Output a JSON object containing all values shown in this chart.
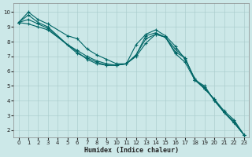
{
  "xlabel": "Humidex (Indice chaleur)",
  "ylabel": "",
  "bg_color": "#cce8e8",
  "grid_color": "#aacccc",
  "line_color": "#006666",
  "xlim": [
    -0.5,
    23.5
  ],
  "ylim": [
    1.5,
    10.6
  ],
  "xticks": [
    0,
    1,
    2,
    3,
    4,
    5,
    6,
    7,
    8,
    9,
    10,
    11,
    12,
    13,
    14,
    15,
    16,
    17,
    18,
    19,
    20,
    21,
    22,
    23
  ],
  "yticks": [
    2,
    3,
    4,
    5,
    6,
    7,
    8,
    9,
    10
  ],
  "series": [
    {
      "x": [
        0,
        1,
        2,
        3,
        5,
        6,
        7,
        8,
        9,
        10,
        11,
        12,
        13,
        14,
        15,
        16,
        17,
        18,
        19,
        20,
        21,
        22,
        23
      ],
      "y": [
        9.3,
        10.0,
        9.5,
        9.2,
        8.4,
        8.2,
        7.5,
        7.1,
        6.8,
        6.5,
        6.5,
        7.8,
        8.5,
        8.8,
        8.4,
        7.7,
        6.8,
        5.5,
        4.8,
        4.1,
        3.3,
        2.7,
        1.7
      ]
    },
    {
      "x": [
        0,
        1,
        2,
        3,
        5,
        6,
        7,
        8,
        9,
        10,
        11,
        12,
        13,
        14,
        15,
        16,
        17,
        18,
        19,
        20,
        21,
        22,
        23
      ],
      "y": [
        9.3,
        9.8,
        9.3,
        9.0,
        7.8,
        7.4,
        7.0,
        6.7,
        6.5,
        6.4,
        6.5,
        7.1,
        8.4,
        8.6,
        8.3,
        7.2,
        6.6,
        5.4,
        4.9,
        4.0,
        3.2,
        2.6,
        1.7
      ]
    },
    {
      "x": [
        0,
        1,
        2,
        3,
        6,
        7,
        8,
        9,
        10,
        11,
        12,
        13,
        14,
        15,
        16,
        17,
        18,
        19,
        20,
        21,
        22,
        23
      ],
      "y": [
        9.3,
        9.5,
        9.2,
        8.9,
        7.2,
        6.9,
        6.6,
        6.4,
        6.4,
        6.5,
        7.1,
        8.2,
        8.5,
        8.3,
        7.5,
        6.9,
        5.4,
        5.0,
        4.0,
        3.2,
        2.5,
        1.7
      ]
    },
    {
      "x": [
        0,
        1,
        2,
        3,
        7,
        8,
        9,
        10,
        11,
        12,
        13,
        14,
        15,
        16,
        17,
        18,
        19,
        20,
        21,
        22,
        23
      ],
      "y": [
        9.3,
        9.2,
        9.0,
        8.8,
        6.8,
        6.5,
        6.4,
        6.4,
        6.5,
        7.0,
        7.9,
        8.5,
        8.3,
        7.3,
        6.9,
        5.4,
        4.8,
        4.1,
        3.2,
        2.5,
        1.7
      ]
    }
  ]
}
